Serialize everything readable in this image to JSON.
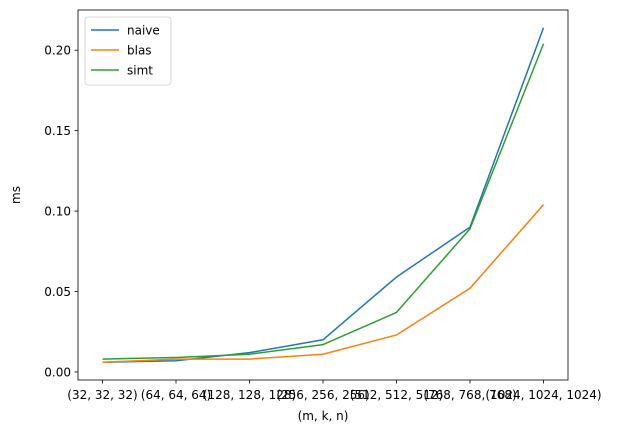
{
  "chart_data": {
    "type": "line",
    "categories": [
      "(32, 32, 32)",
      "(64, 64, 64)",
      "(128, 128, 128)",
      "(256, 256, 256)",
      "(512, 512, 512)",
      "(768, 768, 768)",
      "(1024, 1024, 1024)"
    ],
    "series": [
      {
        "name": "naive",
        "color": "#1f77b4",
        "values": [
          0.006,
          0.007,
          0.012,
          0.02,
          0.059,
          0.09,
          0.214
        ]
      },
      {
        "name": "blas",
        "color": "#ff7f0e",
        "values": [
          0.006,
          0.008,
          0.008,
          0.011,
          0.023,
          0.052,
          0.104
        ]
      },
      {
        "name": "simt",
        "color": "#2ca02c",
        "values": [
          0.008,
          0.009,
          0.011,
          0.017,
          0.037,
          0.089,
          0.204
        ]
      }
    ],
    "xlabel": "(m, k, n)",
    "ylabel": "ms",
    "ylim": [
      -0.005,
      0.225
    ],
    "yticks": [
      0.0,
      0.05,
      0.1,
      0.15,
      0.2
    ],
    "ytick_labels": [
      "0.00",
      "0.05",
      "0.10",
      "0.15",
      "0.20"
    ],
    "grid": false,
    "legend_position": "top-left"
  }
}
